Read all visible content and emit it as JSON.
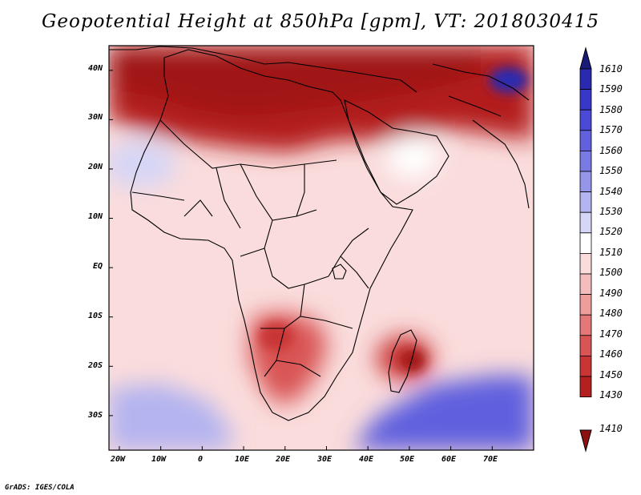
{
  "title": "Geopotential Height at 850hPa [gpm], VT: 2018030415",
  "footer": "GrADS: IGES/COLA",
  "axes": {
    "lat_labels": [
      "40N",
      "30N",
      "20N",
      "10N",
      "EQ",
      "10S",
      "20S",
      "30S"
    ],
    "lat_values": [
      40,
      30,
      20,
      10,
      0,
      -10,
      -20,
      -30
    ],
    "lon_labels": [
      "20W",
      "10W",
      "0",
      "10E",
      "20E",
      "30E",
      "40E",
      "50E",
      "60E",
      "70E"
    ],
    "lon_values": [
      -20,
      -10,
      0,
      10,
      20,
      30,
      40,
      50,
      60,
      70
    ],
    "lon_range": [
      -22.5,
      80
    ],
    "lat_range": [
      -37,
      45
    ]
  },
  "colorbar": {
    "labels": [
      "1610",
      "1590",
      "1580",
      "1570",
      "1560",
      "1550",
      "1540",
      "1530",
      "1520",
      "1510",
      "1500",
      "1490",
      "1480",
      "1470",
      "1460",
      "1450",
      "1430",
      "1410"
    ],
    "colors": [
      "#1f1f8f",
      "#2a2ab0",
      "#3838c8",
      "#4a4ad6",
      "#6161de",
      "#7a7ae4",
      "#9595ea",
      "#b4b4f0",
      "#d6d6f7",
      "#ffffff",
      "#fadcdc",
      "#f4bcbc",
      "#ee9c9c",
      "#e47878",
      "#d95555",
      "#c93535",
      "#b41f1f",
      "#a01818"
    ],
    "top_arrow_color": "#1a1a7a",
    "bottom_arrow_color": "#8c1010"
  },
  "field": {
    "background_level": "1500",
    "regions": [
      {
        "name": "north-africa-mediterranean-low",
        "level": "1410"
      },
      {
        "name": "sahara-band",
        "level": "1430"
      },
      {
        "name": "southern-africa-low",
        "level": "1460"
      },
      {
        "name": "madagascar-low",
        "level": "1450"
      },
      {
        "name": "south-atlantic-high",
        "level": "1530"
      },
      {
        "name": "south-indian-ocean-high",
        "level": "1560"
      },
      {
        "name": "tibet-high",
        "level": "1590"
      }
    ]
  }
}
